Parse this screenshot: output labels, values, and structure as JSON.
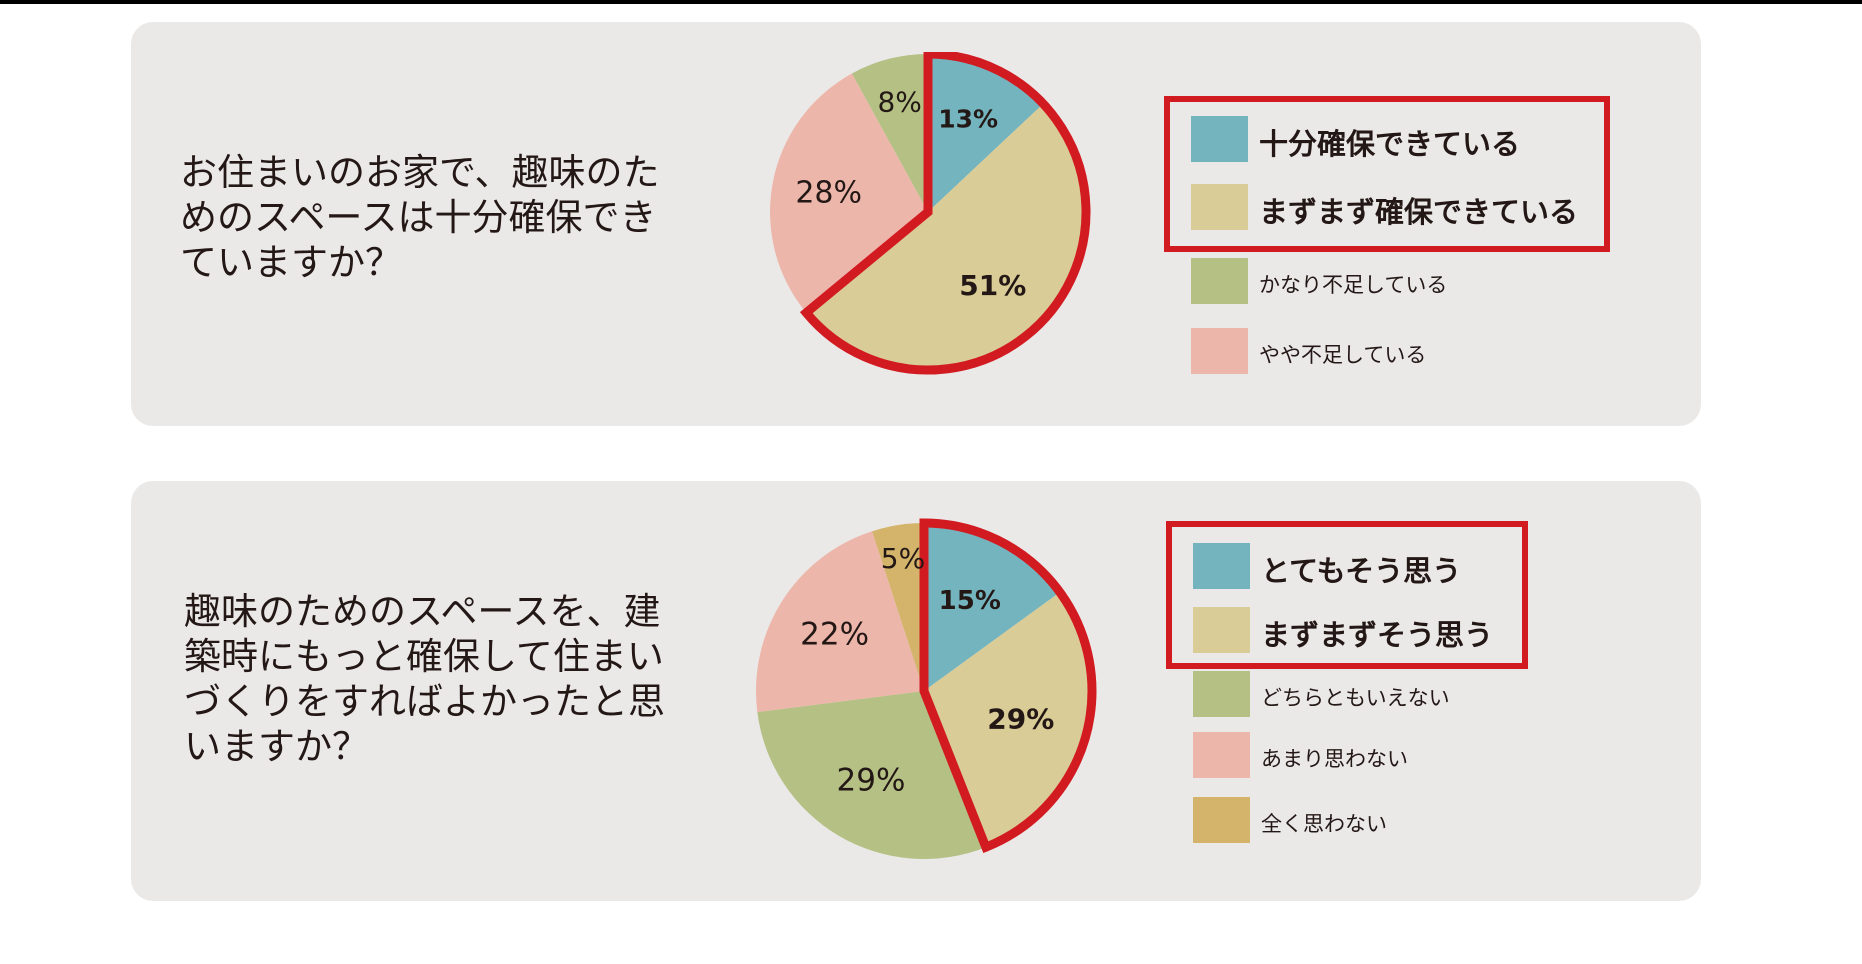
{
  "colors": {
    "teal": "#74b4be",
    "khaki": "#dacc96",
    "green": "#b5c184",
    "pink": "#edb6aa",
    "gold": "#d3b46a",
    "highlight": "#d21a21",
    "card_bg": "#ebe9e8",
    "text": "#231815"
  },
  "questions": [
    "お住まいのお家で、趣味のた\nめのスペースは十分確保でき\nていますか？",
    "趣味のためのスペースを、建\n築時にもっと確保して住まい\nづくりをすればよかったと思\nいますか？"
  ],
  "chart_data": [
    {
      "type": "pie",
      "title": "お住まいのお家で、趣味のためのスペースは十分確保できていますか？",
      "categories": [
        "十分確保できている",
        "まずまず確保できている",
        "やや不足している",
        "かなり不足している"
      ],
      "values": [
        13,
        51,
        28,
        8
      ],
      "labels": [
        "13%",
        "51%",
        "28%",
        "8%"
      ],
      "colors": [
        "#74b4be",
        "#dacc96",
        "#edb6aa",
        "#b5c184"
      ],
      "highlighted": [
        "十分確保できている",
        "まずまず確保できている"
      ],
      "legend": [
        {
          "label": "十分確保できている",
          "color": "#74b4be",
          "highlighted": true
        },
        {
          "label": "まずまず確保できている",
          "color": "#dacc96",
          "highlighted": true
        },
        {
          "label": "かなり不足している",
          "color": "#b5c184",
          "highlighted": false
        },
        {
          "label": "やや不足している",
          "color": "#edb6aa",
          "highlighted": false
        }
      ]
    },
    {
      "type": "pie",
      "title": "趣味のためのスペースを、建築時にもっと確保して住まいづくりをすればよかったと思いますか？",
      "categories": [
        "とてもそう思う",
        "まずまずそう思う",
        "どちらともいえない",
        "あまり思わない",
        "全く思わない"
      ],
      "values": [
        15,
        29,
        29,
        22,
        5
      ],
      "labels": [
        "15%",
        "29%",
        "29%",
        "22%",
        "5%"
      ],
      "colors": [
        "#74b4be",
        "#dacc96",
        "#b5c184",
        "#edb6aa",
        "#d3b46a"
      ],
      "highlighted": [
        "とてもそう思う",
        "まずまずそう思う"
      ],
      "legend": [
        {
          "label": "とてもそう思う",
          "color": "#74b4be",
          "highlighted": true
        },
        {
          "label": "まずまずそう思う",
          "color": "#dacc96",
          "highlighted": true
        },
        {
          "label": "どちらともいえない",
          "color": "#b5c184",
          "highlighted": false
        },
        {
          "label": "あまり思わない",
          "color": "#edb6aa",
          "highlighted": false
        },
        {
          "label": "全く思わない",
          "color": "#d3b46a",
          "highlighted": false
        }
      ]
    }
  ]
}
